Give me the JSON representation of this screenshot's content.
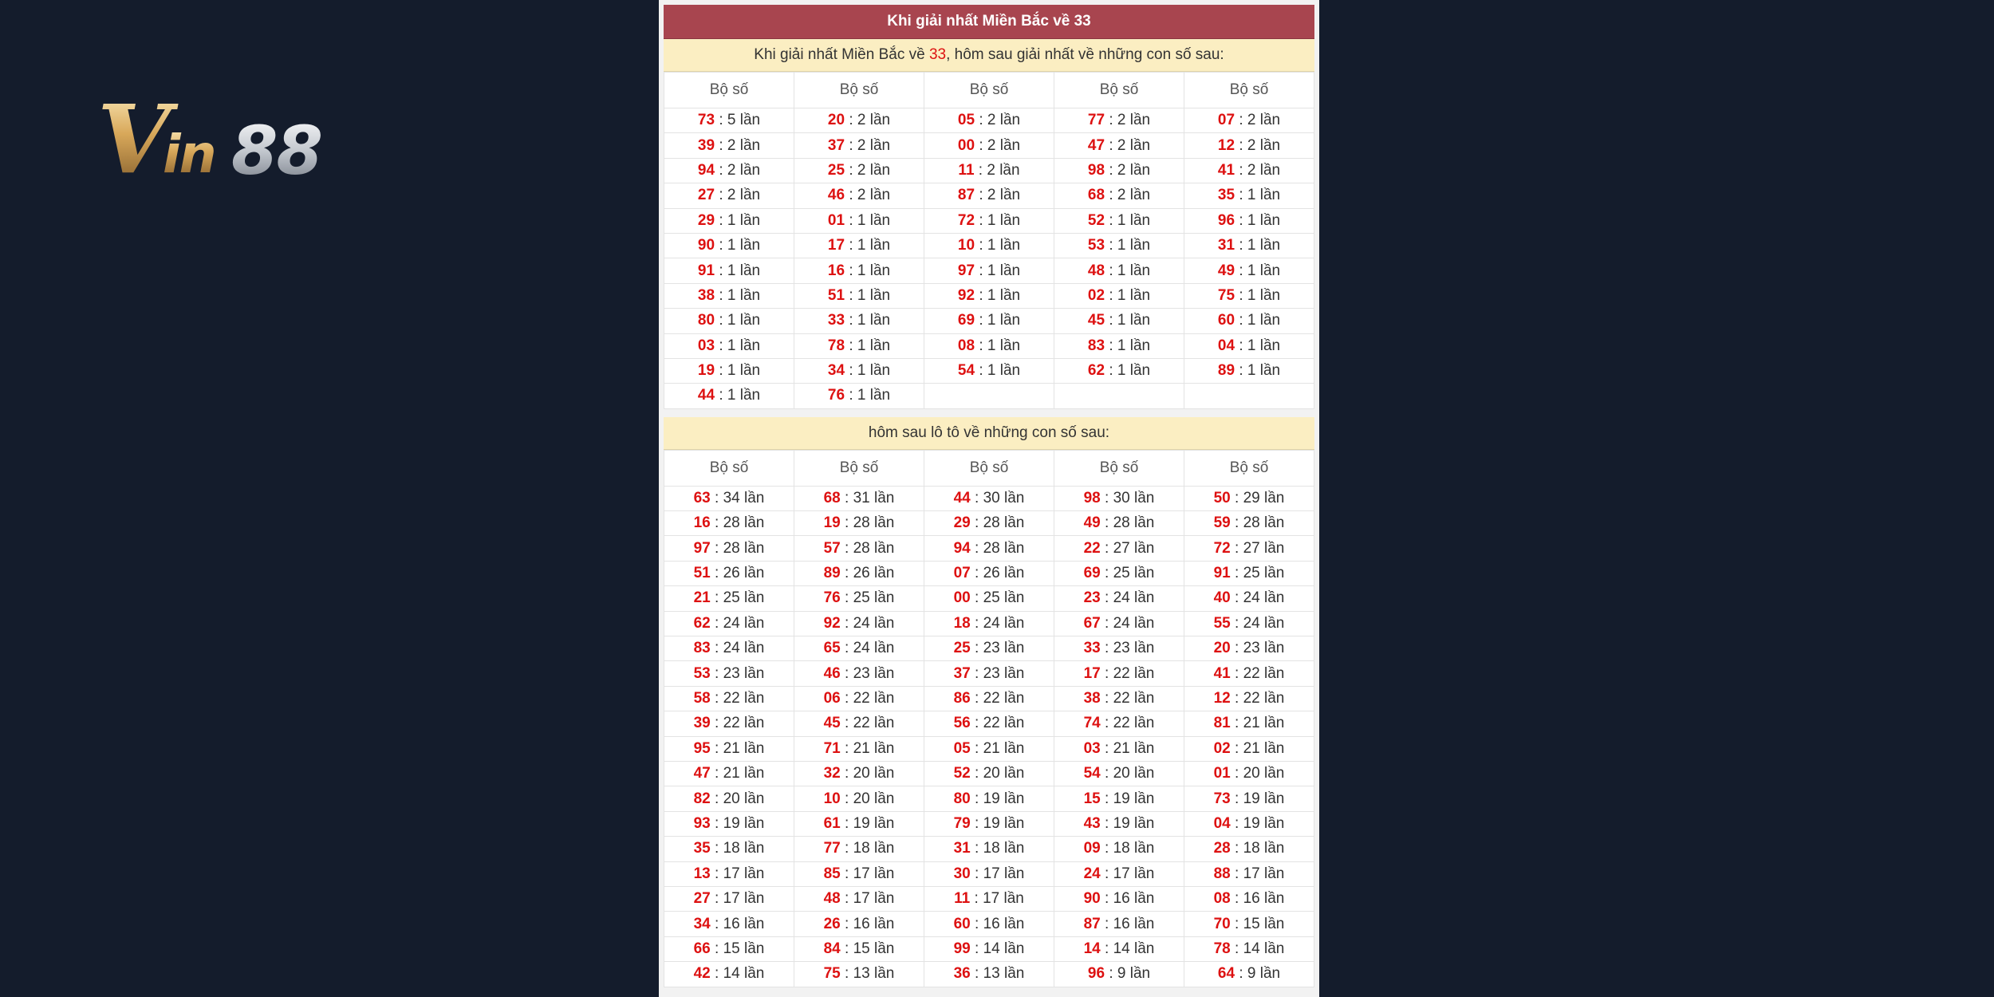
{
  "brand": {
    "name": "Vin88",
    "logo_part1": "Vin",
    "logo_part2": "88"
  },
  "title": "Khi giải nhất Miền Bắc về 33",
  "section1": {
    "heading_prefix": "Khi giải nhất Miền Bắc về ",
    "heading_number": "33",
    "heading_suffix": ", hôm sau giải nhất về những con số sau:",
    "column_header": "Bộ số",
    "rows": [
      [
        [
          "73",
          "5 lần"
        ],
        [
          "20",
          "2 lần"
        ],
        [
          "05",
          "2 lần"
        ],
        [
          "77",
          "2 lần"
        ],
        [
          "07",
          "2 lần"
        ]
      ],
      [
        [
          "39",
          "2 lần"
        ],
        [
          "37",
          "2 lần"
        ],
        [
          "00",
          "2 lần"
        ],
        [
          "47",
          "2 lần"
        ],
        [
          "12",
          "2 lần"
        ]
      ],
      [
        [
          "94",
          "2 lần"
        ],
        [
          "25",
          "2 lần"
        ],
        [
          "11",
          "2 lần"
        ],
        [
          "98",
          "2 lần"
        ],
        [
          "41",
          "2 lần"
        ]
      ],
      [
        [
          "27",
          "2 lần"
        ],
        [
          "46",
          "2 lần"
        ],
        [
          "87",
          "2 lần"
        ],
        [
          "68",
          "2 lần"
        ],
        [
          "35",
          "1 lần"
        ]
      ],
      [
        [
          "29",
          "1 lần"
        ],
        [
          "01",
          "1 lần"
        ],
        [
          "72",
          "1 lần"
        ],
        [
          "52",
          "1 lần"
        ],
        [
          "96",
          "1 lần"
        ]
      ],
      [
        [
          "90",
          "1 lần"
        ],
        [
          "17",
          "1 lần"
        ],
        [
          "10",
          "1 lần"
        ],
        [
          "53",
          "1 lần"
        ],
        [
          "31",
          "1 lần"
        ]
      ],
      [
        [
          "91",
          "1 lần"
        ],
        [
          "16",
          "1 lần"
        ],
        [
          "97",
          "1 lần"
        ],
        [
          "48",
          "1 lần"
        ],
        [
          "49",
          "1 lần"
        ]
      ],
      [
        [
          "38",
          "1 lần"
        ],
        [
          "51",
          "1 lần"
        ],
        [
          "92",
          "1 lần"
        ],
        [
          "02",
          "1 lần"
        ],
        [
          "75",
          "1 lần"
        ]
      ],
      [
        [
          "80",
          "1 lần"
        ],
        [
          "33",
          "1 lần"
        ],
        [
          "69",
          "1 lần"
        ],
        [
          "45",
          "1 lần"
        ],
        [
          "60",
          "1 lần"
        ]
      ],
      [
        [
          "03",
          "1 lần"
        ],
        [
          "78",
          "1 lần"
        ],
        [
          "08",
          "1 lần"
        ],
        [
          "83",
          "1 lần"
        ],
        [
          "04",
          "1 lần"
        ]
      ],
      [
        [
          "19",
          "1 lần"
        ],
        [
          "34",
          "1 lần"
        ],
        [
          "54",
          "1 lần"
        ],
        [
          "62",
          "1 lần"
        ],
        [
          "89",
          "1 lần"
        ]
      ],
      [
        [
          "44",
          "1 lần"
        ],
        [
          "76",
          "1 lần"
        ],
        null,
        null,
        null
      ]
    ]
  },
  "section2": {
    "heading": "hôm sau lô tô về những con số sau:",
    "column_header": "Bộ số",
    "rows": [
      [
        [
          "63",
          "34 lần"
        ],
        [
          "68",
          "31 lần"
        ],
        [
          "44",
          "30 lần"
        ],
        [
          "98",
          "30 lần"
        ],
        [
          "50",
          "29 lần"
        ]
      ],
      [
        [
          "16",
          "28 lần"
        ],
        [
          "19",
          "28 lần"
        ],
        [
          "29",
          "28 lần"
        ],
        [
          "49",
          "28 lần"
        ],
        [
          "59",
          "28 lần"
        ]
      ],
      [
        [
          "97",
          "28 lần"
        ],
        [
          "57",
          "28 lần"
        ],
        [
          "94",
          "28 lần"
        ],
        [
          "22",
          "27 lần"
        ],
        [
          "72",
          "27 lần"
        ]
      ],
      [
        [
          "51",
          "26 lần"
        ],
        [
          "89",
          "26 lần"
        ],
        [
          "07",
          "26 lần"
        ],
        [
          "69",
          "25 lần"
        ],
        [
          "91",
          "25 lần"
        ]
      ],
      [
        [
          "21",
          "25 lần"
        ],
        [
          "76",
          "25 lần"
        ],
        [
          "00",
          "25 lần"
        ],
        [
          "23",
          "24 lần"
        ],
        [
          "40",
          "24 lần"
        ]
      ],
      [
        [
          "62",
          "24 lần"
        ],
        [
          "92",
          "24 lần"
        ],
        [
          "18",
          "24 lần"
        ],
        [
          "67",
          "24 lần"
        ],
        [
          "55",
          "24 lần"
        ]
      ],
      [
        [
          "83",
          "24 lần"
        ],
        [
          "65",
          "24 lần"
        ],
        [
          "25",
          "23 lần"
        ],
        [
          "33",
          "23 lần"
        ],
        [
          "20",
          "23 lần"
        ]
      ],
      [
        [
          "53",
          "23 lần"
        ],
        [
          "46",
          "23 lần"
        ],
        [
          "37",
          "23 lần"
        ],
        [
          "17",
          "22 lần"
        ],
        [
          "41",
          "22 lần"
        ]
      ],
      [
        [
          "58",
          "22 lần"
        ],
        [
          "06",
          "22 lần"
        ],
        [
          "86",
          "22 lần"
        ],
        [
          "38",
          "22 lần"
        ],
        [
          "12",
          "22 lần"
        ]
      ],
      [
        [
          "39",
          "22 lần"
        ],
        [
          "45",
          "22 lần"
        ],
        [
          "56",
          "22 lần"
        ],
        [
          "74",
          "22 lần"
        ],
        [
          "81",
          "21 lần"
        ]
      ],
      [
        [
          "95",
          "21 lần"
        ],
        [
          "71",
          "21 lần"
        ],
        [
          "05",
          "21 lần"
        ],
        [
          "03",
          "21 lần"
        ],
        [
          "02",
          "21 lần"
        ]
      ],
      [
        [
          "47",
          "21 lần"
        ],
        [
          "32",
          "20 lần"
        ],
        [
          "52",
          "20 lần"
        ],
        [
          "54",
          "20 lần"
        ],
        [
          "01",
          "20 lần"
        ]
      ],
      [
        [
          "82",
          "20 lần"
        ],
        [
          "10",
          "20 lần"
        ],
        [
          "80",
          "19 lần"
        ],
        [
          "15",
          "19 lần"
        ],
        [
          "73",
          "19 lần"
        ]
      ],
      [
        [
          "93",
          "19 lần"
        ],
        [
          "61",
          "19 lần"
        ],
        [
          "79",
          "19 lần"
        ],
        [
          "43",
          "19 lần"
        ],
        [
          "04",
          "19 lần"
        ]
      ],
      [
        [
          "35",
          "18 lần"
        ],
        [
          "77",
          "18 lần"
        ],
        [
          "31",
          "18 lần"
        ],
        [
          "09",
          "18 lần"
        ],
        [
          "28",
          "18 lần"
        ]
      ],
      [
        [
          "13",
          "17 lần"
        ],
        [
          "85",
          "17 lần"
        ],
        [
          "30",
          "17 lần"
        ],
        [
          "24",
          "17 lần"
        ],
        [
          "88",
          "17 lần"
        ]
      ],
      [
        [
          "27",
          "17 lần"
        ],
        [
          "48",
          "17 lần"
        ],
        [
          "11",
          "17 lần"
        ],
        [
          "90",
          "16 lần"
        ],
        [
          "08",
          "16 lần"
        ]
      ],
      [
        [
          "34",
          "16 lần"
        ],
        [
          "26",
          "16 lần"
        ],
        [
          "60",
          "16 lần"
        ],
        [
          "87",
          "16 lần"
        ],
        [
          "70",
          "15 lần"
        ]
      ],
      [
        [
          "66",
          "15 lần"
        ],
        [
          "84",
          "15 lần"
        ],
        [
          "99",
          "14 lần"
        ],
        [
          "14",
          "14 lần"
        ],
        [
          "78",
          "14 lần"
        ]
      ],
      [
        [
          "42",
          "14 lần"
        ],
        [
          "75",
          "13 lần"
        ],
        [
          "36",
          "13 lần"
        ],
        [
          "96",
          "9 lần"
        ],
        [
          "64",
          "9 lần"
        ]
      ]
    ]
  }
}
